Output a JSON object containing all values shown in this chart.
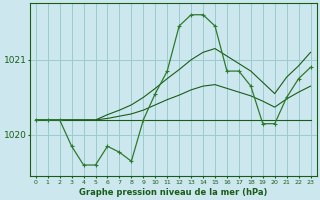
{
  "title": "Graphe pression niveau de la mer (hPa)",
  "background_color": "#cce8ee",
  "grid_color": "#99cccc",
  "line_color_dark": "#1a5c1a",
  "line_color_mid": "#2d7a2d",
  "x_labels": [
    "0",
    "1",
    "2",
    "3",
    "4",
    "5",
    "6",
    "7",
    "8",
    "9",
    "10",
    "11",
    "12",
    "13",
    "14",
    "15",
    "16",
    "17",
    "18",
    "19",
    "20",
    "21",
    "22",
    "23"
  ],
  "x_values": [
    0,
    1,
    2,
    3,
    4,
    5,
    6,
    7,
    8,
    9,
    10,
    11,
    12,
    13,
    14,
    15,
    16,
    17,
    18,
    19,
    20,
    21,
    22,
    23
  ],
  "ylim": [
    1019.45,
    1021.75
  ],
  "yticks": [
    1020,
    1021
  ],
  "series_current": [
    1020.2,
    1020.2,
    1020.2,
    1019.85,
    1019.6,
    1019.6,
    1019.85,
    1019.77,
    1019.65,
    1020.2,
    1020.55,
    1020.85,
    1021.45,
    1021.6,
    1021.6,
    1021.45,
    1020.85,
    1020.85,
    1020.65,
    1020.15,
    1020.15,
    1020.5,
    1020.75,
    1020.9
  ],
  "series_max": [
    1020.2,
    1020.2,
    1020.2,
    1020.2,
    1020.2,
    1020.2,
    1020.27,
    1020.33,
    1020.4,
    1020.5,
    1020.62,
    1020.75,
    1020.87,
    1021.0,
    1021.1,
    1021.15,
    1021.05,
    1020.95,
    1020.85,
    1020.7,
    1020.55,
    1020.77,
    1020.92,
    1021.1
  ],
  "series_min": [
    1020.2,
    1020.2,
    1020.2,
    1020.2,
    1020.2,
    1020.2,
    1020.2,
    1020.2,
    1020.2,
    1020.2,
    1020.2,
    1020.2,
    1020.2,
    1020.2,
    1020.2,
    1020.2,
    1020.2,
    1020.2,
    1020.2,
    1020.2,
    1020.2,
    1020.2,
    1020.2,
    1020.2
  ],
  "series_avg": [
    1020.2,
    1020.2,
    1020.2,
    1020.2,
    1020.2,
    1020.2,
    1020.22,
    1020.25,
    1020.28,
    1020.33,
    1020.4,
    1020.47,
    1020.53,
    1020.6,
    1020.65,
    1020.67,
    1020.62,
    1020.57,
    1020.52,
    1020.45,
    1020.37,
    1020.48,
    1020.57,
    1020.65
  ]
}
